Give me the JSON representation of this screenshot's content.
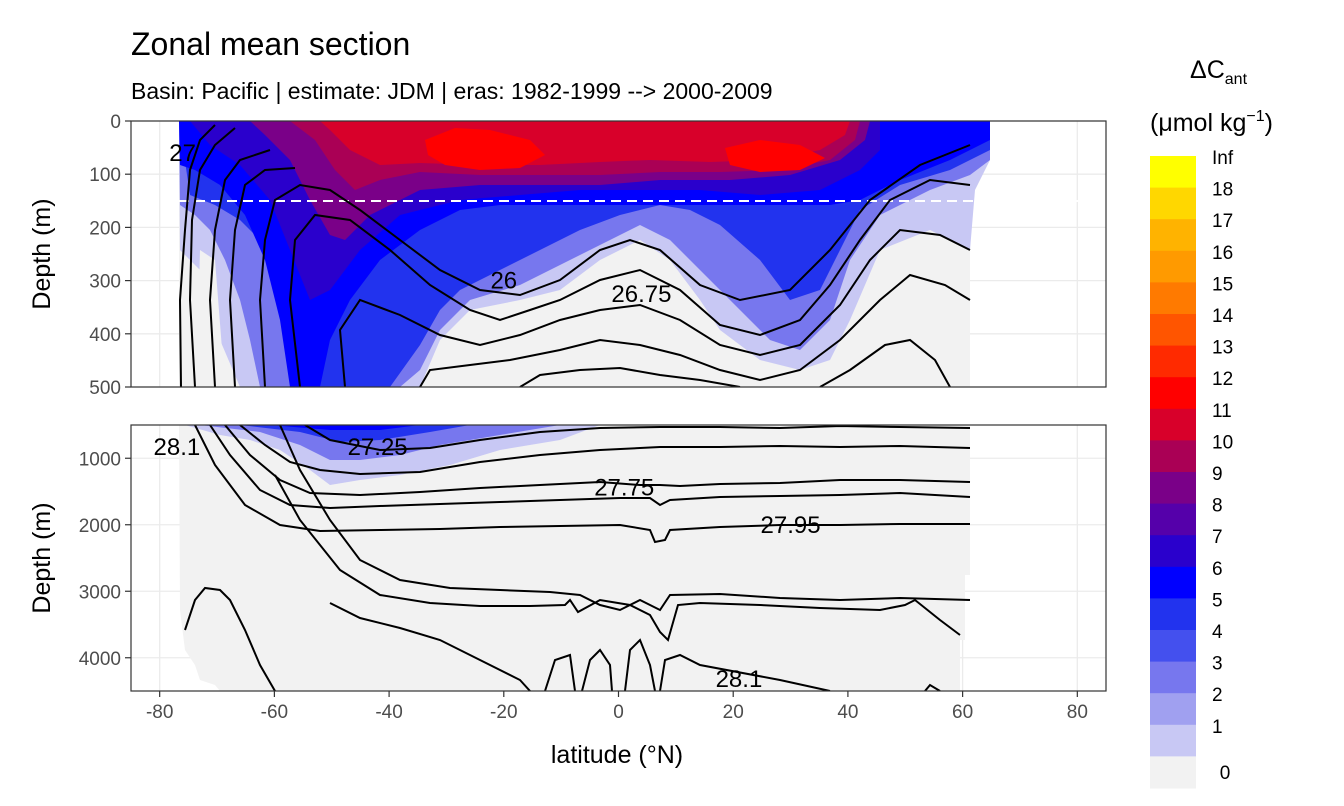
{
  "chart_data": {
    "type": "heatmap",
    "title": "Zonal mean section",
    "subtitle": "Basin: Pacific | estimate: JDM  | eras: 1982-1999 --> 2000-2009",
    "xlabel": "latitude (°N)",
    "ylabel_top": "Depth (m)",
    "ylabel_bottom": "Depth (m)",
    "x_ticks": [
      "-80",
      "-60",
      "-40",
      "-20",
      "0",
      "20",
      "40",
      "60",
      "80"
    ],
    "x_tick_values": [
      -80,
      -60,
      -40,
      -20,
      0,
      20,
      40,
      60,
      80
    ],
    "xlim": [
      -85,
      85
    ],
    "top_panel": {
      "ylim": [
        0,
        500
      ],
      "y_ticks": [
        "0",
        "100",
        "200",
        "300",
        "400",
        "500"
      ],
      "y_tick_values": [
        0,
        100,
        200,
        300,
        400,
        500
      ],
      "dashed_line_depth": 150
    },
    "bottom_panel": {
      "ylim": [
        500,
        4500
      ],
      "y_ticks": [
        "1000",
        "2000",
        "3000",
        "4000"
      ],
      "y_tick_values": [
        1000,
        2000,
        3000,
        4000
      ]
    },
    "contour_labels": [
      {
        "text": "26",
        "lat": -20,
        "depth": 300,
        "panel": "top"
      },
      {
        "text": "26.75",
        "lat": 4,
        "depth": 325,
        "panel": "top"
      },
      {
        "text": "27",
        "lat": -76,
        "depth": 60,
        "panel": "top"
      },
      {
        "text": "28.1",
        "lat": -77,
        "depth": 830,
        "panel": "bottom"
      },
      {
        "text": "27.25",
        "lat": -42,
        "depth": 830,
        "panel": "bottom"
      },
      {
        "text": "27.75",
        "lat": 1,
        "depth": 1440,
        "panel": "bottom"
      },
      {
        "text": "27.95",
        "lat": 30,
        "depth": 2000,
        "panel": "bottom"
      },
      {
        "text": "28.1",
        "lat": 21,
        "depth": 4320,
        "panel": "bottom"
      }
    ],
    "legend": {
      "title_main": "ΔC",
      "title_sub": "ant",
      "units": "(μmol kg",
      "units_sup": "−1",
      "units_end": ")",
      "labels": [
        "Inf",
        "18",
        "17",
        "16",
        "15",
        "14",
        "13",
        "12",
        "11",
        "10",
        "9",
        "8",
        "7",
        "6",
        "5",
        "4",
        "3",
        "2",
        "1",
        "0"
      ],
      "colors": [
        "#FFFF00",
        "#FFD700",
        "#FFB300",
        "#FF9A00",
        "#FF7A00",
        "#FF5500",
        "#FF2A00",
        "#FF0000",
        "#D8002A",
        "#AA0055",
        "#7A0088",
        "#5500AA",
        "#2A00CC",
        "#0000FF",
        "#2233EE",
        "#4450EE",
        "#7777EE",
        "#A0A0F0",
        "#C8C8F4",
        "#F2F2F2"
      ]
    }
  }
}
